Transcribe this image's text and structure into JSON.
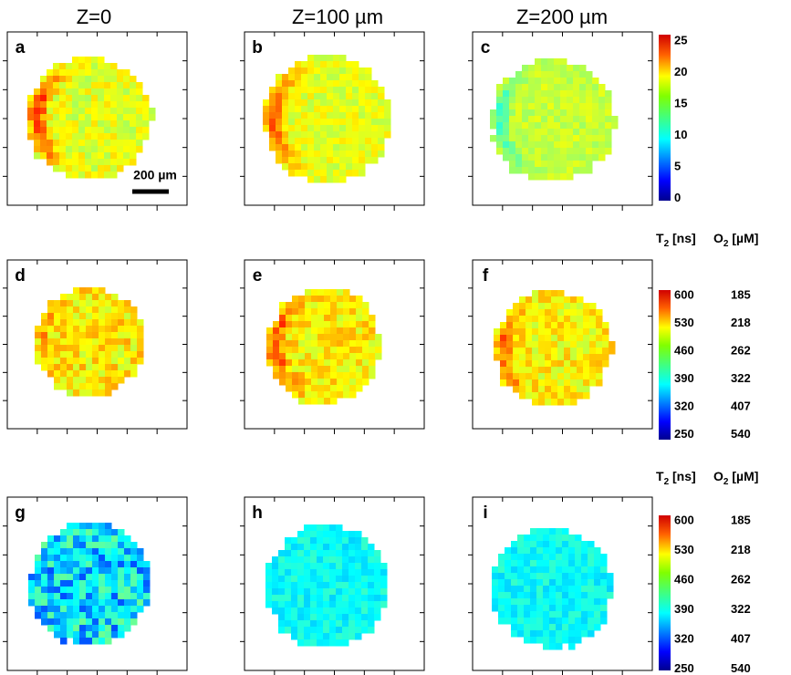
{
  "columns": [
    "Z=0",
    "Z=100 µm",
    "Z=200 µm"
  ],
  "panels": [
    "a",
    "b",
    "c",
    "d",
    "e",
    "f",
    "g",
    "h",
    "i"
  ],
  "scale_bar": "200 µm",
  "colorbar_top": {
    "ticks": [
      25,
      20,
      15,
      10,
      5,
      0
    ]
  },
  "colorbar_t2": {
    "header": [
      {
        "base": "T",
        "sub": "2",
        "unit": "[ns]"
      },
      {
        "base": "O",
        "sub": "2",
        "unit": "[µM]"
      }
    ],
    "ticks": [
      [
        600,
        185
      ],
      [
        530,
        218
      ],
      [
        460,
        262
      ],
      [
        390,
        322
      ],
      [
        320,
        407
      ],
      [
        250,
        540
      ]
    ]
  }
}
